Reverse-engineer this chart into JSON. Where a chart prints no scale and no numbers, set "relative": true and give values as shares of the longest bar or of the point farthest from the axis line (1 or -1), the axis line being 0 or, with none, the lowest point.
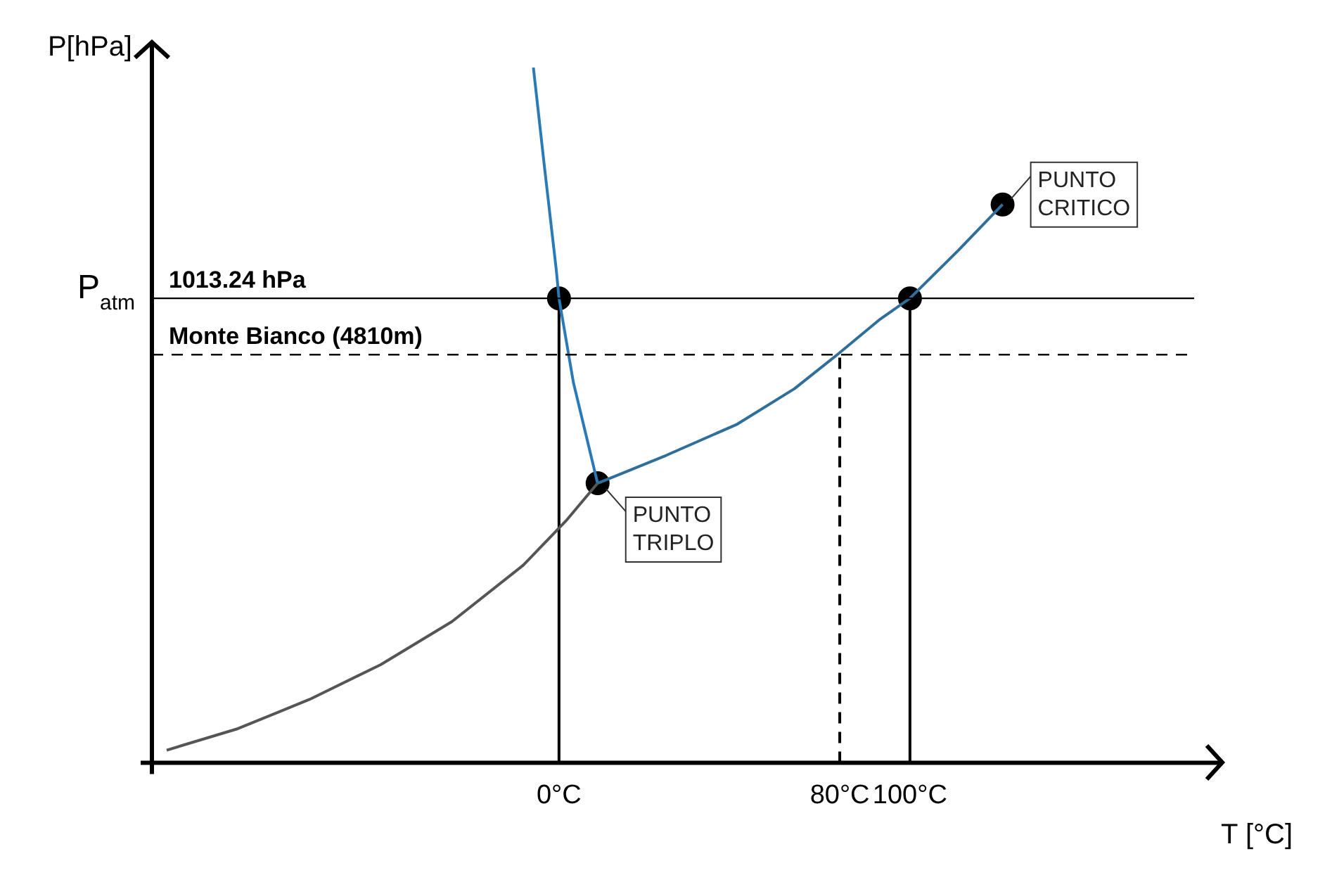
{
  "chart_data": {
    "type": "line",
    "relative": true,
    "xlabel": "T [°C]",
    "ylabel": "P[hPa]",
    "xlim": [
      -116,
      189
    ],
    "xticks": [
      {
        "value": 0,
        "label": "0°C"
      },
      {
        "value": 80,
        "label": "80°C"
      },
      {
        "value": 100,
        "label": "100°C"
      }
    ],
    "grid": false,
    "legend": false,
    "marker": "none",
    "series": [
      {
        "type": "line",
        "color": "#555555",
        "x": [
          -111.8,
          -91.5,
          -71.1,
          -50.8,
          -30.5,
          -10.2,
          2.0,
          11.0
        ],
        "values": [
          0.018,
          0.049,
          0.091,
          0.141,
          0.203,
          0.284,
          0.348,
          0.402
        ]
      },
      {
        "type": "line",
        "color": "#2f6f9a",
        "x": [
          11.0,
          30.5,
          50.8,
          67.1,
          79.3,
          91.5,
          100,
          113.8,
          126.4
        ],
        "values": [
          0.402,
          0.442,
          0.487,
          0.538,
          0.587,
          0.638,
          0.668,
          0.737,
          0.803
        ]
      },
      {
        "type": "line",
        "color": "#2a7ab8",
        "x": [
          -7.3,
          -4.1,
          -0.8,
          0,
          4.1,
          11.0
        ],
        "values": [
          1.0,
          0.855,
          0.71,
          0.668,
          0.547,
          0.402
        ]
      },
      {
        "type": "line",
        "color": "#000000",
        "x": [
          0,
          0
        ],
        "values": [
          0,
          0.668
        ]
      },
      {
        "type": "line",
        "color": "#000000",
        "line_style": "dashed",
        "x": [
          80,
          80
        ],
        "values": [
          0,
          0.587
        ]
      },
      {
        "type": "line",
        "color": "#000000",
        "x": [
          100,
          100
        ],
        "values": [
          0,
          0.668
        ]
      },
      {
        "type": "scatter",
        "color": "#000000",
        "marker": "circle",
        "x": [
          0,
          11.0,
          100,
          126.4
        ],
        "values": [
          0.668,
          0.402,
          0.668,
          0.803
        ]
      }
    ],
    "ref_lines": [
      {
        "axis": "y",
        "value": 0.668,
        "label": "1013.24 hPa",
        "color": "#000000"
      },
      {
        "axis": "y",
        "value": 0.587,
        "label": "Monte Bianco (4810m)",
        "color": "#000000",
        "line_style": "dashed"
      }
    ],
    "annotations": [
      "P$_{atm}$",
      {
        "text": "PUNTO TRIPLO",
        "x": 11.0,
        "y": 0.402
      },
      {
        "text": "PUNTO CRITICO",
        "x": 126.4,
        "y": 0.803
      }
    ]
  }
}
